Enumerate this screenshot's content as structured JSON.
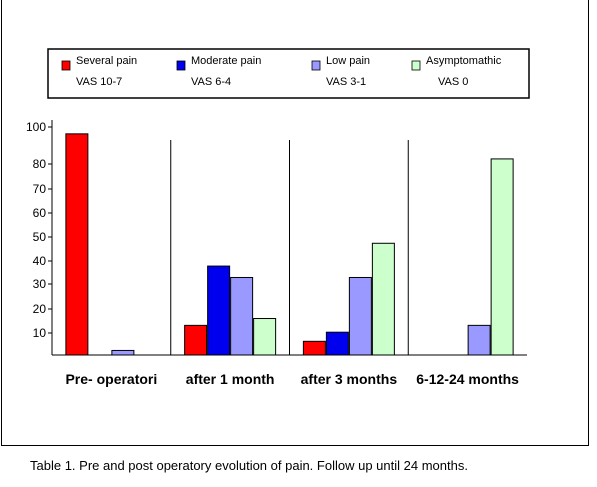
{
  "chart_data": {
    "type": "bar",
    "categories": [
      "Pre- operatori",
      "after 1 month",
      "after 3 months",
      "6-12-24 months"
    ],
    "series": [
      {
        "name": "Several pain",
        "sublabel": "VAS 10-7",
        "color": "#ff0000",
        "values": [
          97,
          13,
          6,
          0
        ]
      },
      {
        "name": "Moderate pain",
        "sublabel": "VAS 6-4",
        "color": "#0000ee",
        "values": [
          0,
          39,
          10,
          0
        ]
      },
      {
        "name": "Low pain",
        "sublabel": "VAS 3-1",
        "color": "#9999ff",
        "values": [
          2,
          34,
          34,
          13
        ]
      },
      {
        "name": "Asymptomathic",
        "sublabel": "VAS 0",
        "color": "#ccffcc",
        "values": [
          0,
          16,
          49,
          86
        ]
      }
    ],
    "yticks": [
      "100",
      "80",
      "70",
      "60",
      "50",
      "40",
      "30",
      "20",
      "10"
    ],
    "ylim": [
      0,
      100
    ],
    "legend_position": "top",
    "grid": false
  },
  "caption": "Table 1. Pre and post operatory evolution of pain. Follow up until 24 months."
}
